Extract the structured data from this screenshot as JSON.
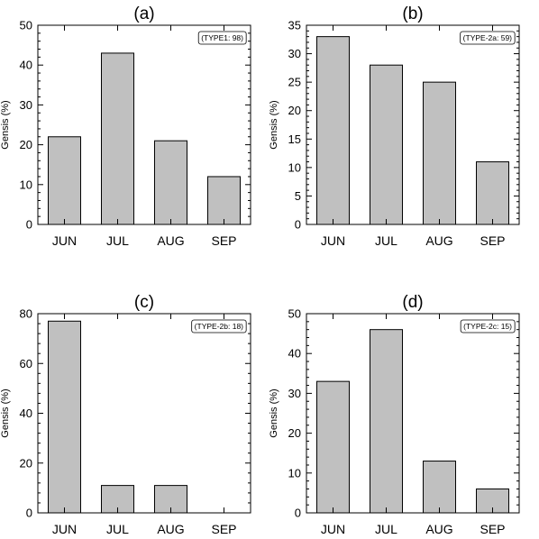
{
  "chart_data": [
    {
      "type": "bar",
      "title": "(a)",
      "ylabel": "Gensis (%)",
      "categories": [
        "JUN",
        "JUL",
        "AUG",
        "SEP"
      ],
      "values": [
        22,
        43,
        21,
        12
      ],
      "ylim": [
        0,
        50
      ],
      "yticks": [
        0,
        10,
        20,
        30,
        40,
        50
      ],
      "annotation": "(TYPE1: 98)",
      "bar_color": "#c0c0c0",
      "grid": false
    },
    {
      "type": "bar",
      "title": "(b)",
      "ylabel": "Gensis (%)",
      "categories": [
        "JUN",
        "JUL",
        "AUG",
        "SEP"
      ],
      "values": [
        33,
        28,
        25,
        11
      ],
      "ylim": [
        0,
        35
      ],
      "yticks": [
        0,
        5,
        10,
        15,
        20,
        25,
        30,
        35
      ],
      "annotation": "(TYPE-2a: 59)",
      "bar_color": "#c0c0c0",
      "grid": false
    },
    {
      "type": "bar",
      "title": "(c)",
      "ylabel": "Gensis (%)",
      "categories": [
        "JUN",
        "JUL",
        "AUG",
        "SEP"
      ],
      "values": [
        77,
        11,
        11,
        0
      ],
      "ylim": [
        0,
        80
      ],
      "yticks": [
        0,
        20,
        40,
        60,
        80
      ],
      "annotation": "(TYPE-2b: 18)",
      "bar_color": "#c0c0c0",
      "grid": false
    },
    {
      "type": "bar",
      "title": "(d)",
      "ylabel": "Gensis (%)",
      "categories": [
        "JUN",
        "JUL",
        "AUG",
        "SEP"
      ],
      "values": [
        33,
        46,
        13,
        6
      ],
      "ylim": [
        0,
        50
      ],
      "yticks": [
        0,
        10,
        20,
        30,
        40,
        50
      ],
      "annotation": "(TYPE-2c: 15)",
      "bar_color": "#c0c0c0",
      "grid": false
    }
  ]
}
